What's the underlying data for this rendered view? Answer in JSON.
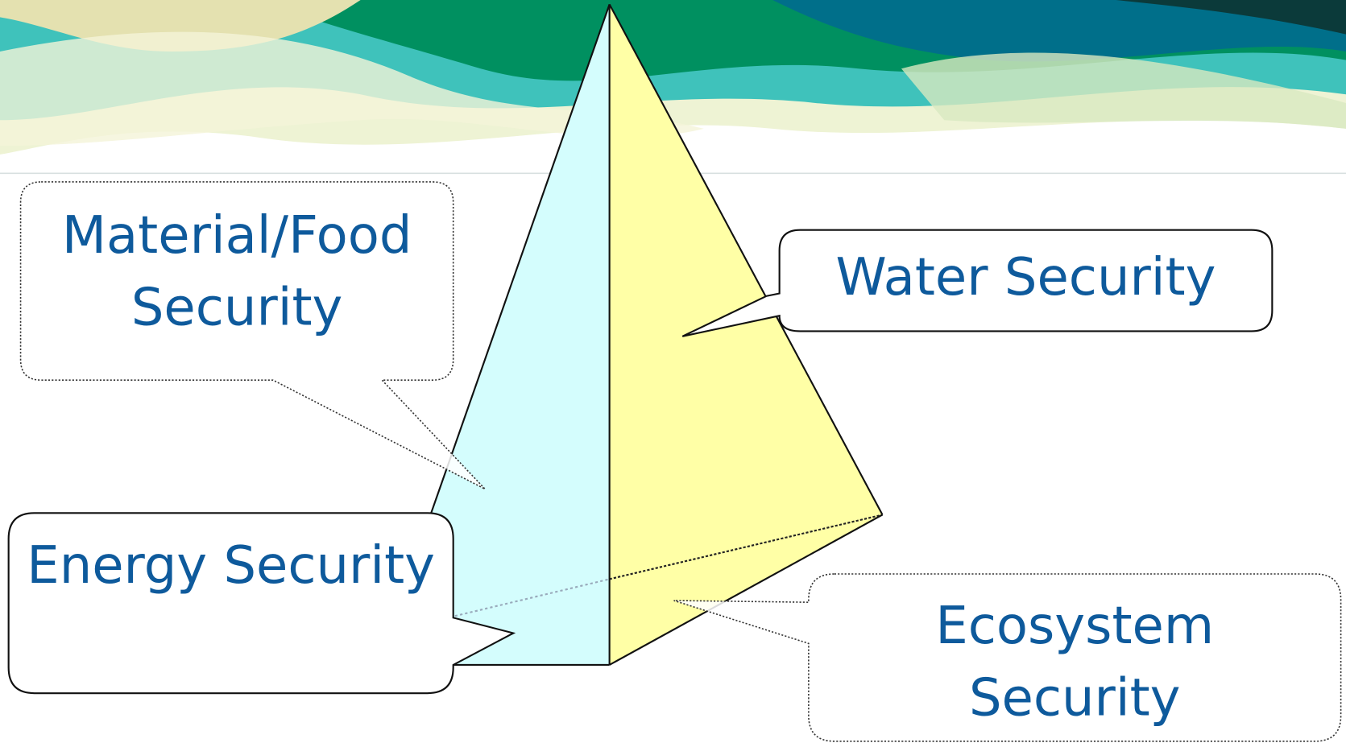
{
  "callouts": [
    {
      "lines": [
        "Material/Food",
        "Security"
      ]
    },
    {
      "lines": [
        "Water Security"
      ]
    },
    {
      "lines": [
        "Energy Security"
      ]
    },
    {
      "lines": [
        "Ecosystem",
        "Security"
      ]
    }
  ]
}
